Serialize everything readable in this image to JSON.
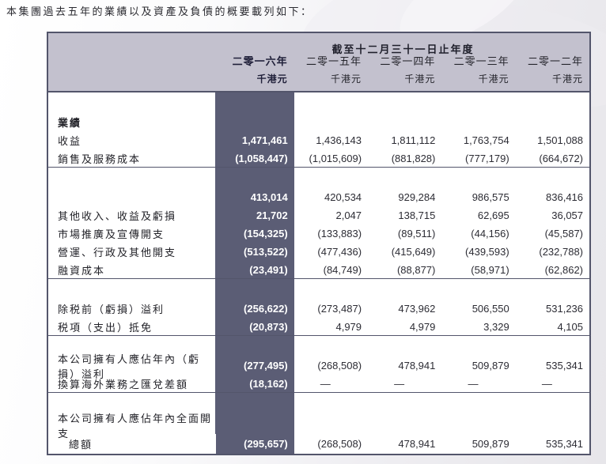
{
  "page": {
    "intro": "本集團過去五年的業績以及資產及負債的概要載列如下："
  },
  "table": {
    "header": {
      "period_title": "截至十二月三十一日止年度",
      "columns": [
        {
          "year": "二零一六年",
          "unit": "千港元"
        },
        {
          "year": "二零一五年",
          "unit": "千港元"
        },
        {
          "year": "二零一四年",
          "unit": "千港元"
        },
        {
          "year": "二零一三年",
          "unit": "千港元"
        },
        {
          "year": "二零一二年",
          "unit": "千港元"
        }
      ]
    },
    "rows": [
      {
        "type": "spacer"
      },
      {
        "type": "section",
        "label": "業績"
      },
      {
        "label": "收益",
        "values": [
          "1,471,461",
          "1,436,143",
          "1,811,112",
          "1,763,754",
          "1,501,088"
        ]
      },
      {
        "label": "銷售及服務成本",
        "values": [
          "(1,058,447)",
          "(1,015,609)",
          "(881,828)",
          "(777,179)",
          "(664,672)"
        ],
        "line_after": true
      },
      {
        "type": "spacer"
      },
      {
        "label": "",
        "values": [
          "413,014",
          "420,534",
          "929,284",
          "986,575",
          "836,416"
        ]
      },
      {
        "label": "其他收入、收益及虧損",
        "values": [
          "21,702",
          "2,047",
          "138,715",
          "62,695",
          "36,057"
        ]
      },
      {
        "label": "市場推廣及宣傳開支",
        "values": [
          "(154,325)",
          "(133,883)",
          "(89,511)",
          "(44,156)",
          "(45,587)"
        ]
      },
      {
        "label": "營運、行政及其他開支",
        "values": [
          "(513,522)",
          "(477,436)",
          "(415,649)",
          "(439,593)",
          "(232,788)"
        ]
      },
      {
        "label": "融資成本",
        "values": [
          "(23,491)",
          "(84,749)",
          "(88,877)",
          "(58,971)",
          "(62,862)"
        ],
        "line_after": true
      },
      {
        "type": "spacer"
      },
      {
        "label": "除税前（虧損）溢利",
        "values": [
          "(256,622)",
          "(273,487)",
          "473,962",
          "506,550",
          "531,236"
        ]
      },
      {
        "label": "税項（支出）抵免",
        "values": [
          "(20,873)",
          "4,979",
          "4,979",
          "3,329",
          "4,105"
        ],
        "line_after": true
      },
      {
        "type": "spacer"
      },
      {
        "label": "本公司擁有人應佔年內（虧損）溢利",
        "values": [
          "(277,495)",
          "(268,508)",
          "478,941",
          "509,879",
          "535,341"
        ]
      },
      {
        "label": "換算海外業務之匯兌差額",
        "values": [
          "(18,162)",
          "—",
          "—",
          "—",
          "—"
        ],
        "line_after": true
      },
      {
        "type": "spacer",
        "size": "lg"
      },
      {
        "label": "本公司擁有人應佔年內全面開支",
        "values": [
          "",
          "",
          "",
          "",
          ""
        ]
      },
      {
        "label": "總額",
        "indent": true,
        "values": [
          "(295,657)",
          "(268,508)",
          "478,941",
          "509,879",
          "535,341"
        ]
      }
    ]
  },
  "colors": {
    "highlight_column_bg": "#5b5d75",
    "header_band_bg": "#c3c1ce",
    "table_border": "#53556b",
    "page_bg_right": "#e7e6ea"
  }
}
